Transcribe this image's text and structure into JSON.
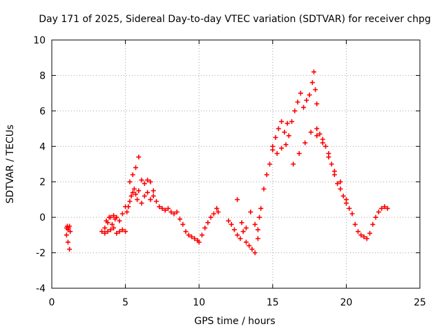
{
  "chart_data": {
    "type": "scatter",
    "title": "Day 171 of 2025, Sidereal Day-to-day VTEC variation (SDTVAR) for receiver chpg",
    "xlabel": "GPS time / hours",
    "ylabel": "SDTVAR / TECUs",
    "xlim": [
      0,
      25
    ],
    "ylim": [
      -4,
      10
    ],
    "xticks": [
      0,
      5,
      10,
      15,
      20,
      25
    ],
    "yticks": [
      -4,
      -2,
      0,
      2,
      4,
      6,
      8,
      10
    ],
    "grid": true,
    "marker": "+",
    "series": [
      {
        "name": "SDTVAR",
        "color": "#ff0000",
        "x": [
          1.0,
          1.05,
          1.1,
          1.15,
          1.2,
          1.25,
          1.0,
          1.1,
          1.2,
          3.4,
          3.6,
          3.8,
          4.0,
          4.2,
          4.4,
          4.6,
          4.8,
          5.0,
          3.6,
          3.8,
          4.0,
          4.2,
          4.4,
          4.6,
          4.8,
          5.0,
          3.7,
          3.9,
          4.1,
          4.3,
          5.1,
          5.2,
          5.3,
          5.4,
          5.5,
          5.6,
          5.7,
          5.8,
          5.9,
          5.3,
          5.5,
          5.7,
          5.9,
          6.1,
          6.3,
          6.5,
          6.7,
          6.9,
          6.1,
          6.3,
          6.5,
          6.7,
          6.9,
          7.1,
          7.3,
          7.5,
          7.7,
          7.9,
          8.1,
          8.3,
          8.5,
          8.7,
          8.9,
          9.1,
          9.3,
          9.5,
          9.7,
          9.9,
          10.0,
          10.2,
          10.4,
          10.6,
          10.8,
          11.0,
          11.2,
          11.3,
          12.0,
          12.2,
          12.4,
          12.6,
          12.8,
          13.0,
          13.2,
          13.4,
          13.6,
          13.8,
          14.0,
          12.6,
          12.9,
          13.2,
          13.5,
          13.8,
          14.1,
          14.0,
          14.2,
          14.4,
          14.6,
          14.8,
          15.0,
          15.2,
          15.4,
          15.6,
          15.8,
          16.0,
          15.0,
          15.3,
          15.6,
          15.9,
          16.1,
          16.3,
          16.5,
          16.7,
          16.9,
          17.1,
          17.3,
          17.5,
          17.7,
          17.8,
          17.9,
          18.0,
          16.4,
          16.8,
          17.2,
          17.6,
          18.0,
          18.2,
          18.4,
          18.6,
          18.8,
          19.0,
          19.2,
          19.4,
          19.6,
          19.8,
          20.0,
          18.0,
          18.4,
          18.8,
          19.2,
          19.6,
          20.0,
          20.2,
          20.4,
          20.6,
          20.8,
          21.0,
          21.2,
          21.4,
          21.6,
          21.8,
          22.0,
          22.2,
          22.4,
          22.6,
          22.8
        ],
        "y": [
          -0.6,
          -0.5,
          -0.7,
          -0.6,
          -0.5,
          -0.8,
          -1.0,
          -1.4,
          -1.8,
          -0.8,
          -0.6,
          -0.3,
          0.0,
          0.1,
          0.0,
          -0.2,
          0.2,
          0.6,
          -0.9,
          -0.8,
          -0.7,
          -0.6,
          -0.9,
          -0.8,
          -0.7,
          -0.8,
          -0.2,
          0.0,
          -0.4,
          -0.1,
          0.3,
          0.6,
          0.9,
          1.2,
          1.4,
          1.6,
          1.3,
          1.0,
          1.5,
          2.0,
          2.4,
          2.8,
          3.4,
          2.1,
          1.9,
          2.1,
          2.0,
          1.5,
          0.8,
          1.2,
          1.4,
          1.0,
          1.2,
          0.9,
          0.6,
          0.5,
          0.4,
          0.5,
          0.3,
          0.2,
          0.3,
          -0.1,
          -0.4,
          -0.8,
          -1.0,
          -1.1,
          -1.2,
          -1.3,
          -1.4,
          -1.0,
          -0.6,
          -0.3,
          0.0,
          0.2,
          0.5,
          0.3,
          -0.2,
          -0.4,
          -0.7,
          -1.0,
          -1.2,
          -0.8,
          -1.4,
          -1.6,
          -1.8,
          -2.0,
          -1.2,
          1.0,
          -0.3,
          -0.6,
          0.3,
          -0.4,
          0.0,
          -0.7,
          0.5,
          1.6,
          2.4,
          3.0,
          3.8,
          4.5,
          5.0,
          5.4,
          4.8,
          5.3,
          4.0,
          3.6,
          3.9,
          4.1,
          4.6,
          5.4,
          6.0,
          6.5,
          7.0,
          6.2,
          6.6,
          6.9,
          7.6,
          8.2,
          7.2,
          6.4,
          3.0,
          3.6,
          4.2,
          4.8,
          5.0,
          4.7,
          4.4,
          4.0,
          3.6,
          3.0,
          2.4,
          1.9,
          1.6,
          1.2,
          0.8,
          4.6,
          4.2,
          3.4,
          2.6,
          2.0,
          1.0,
          0.5,
          0.2,
          -0.4,
          -0.8,
          -1.0,
          -1.1,
          -1.2,
          -0.9,
          -0.4,
          0.0,
          0.3,
          0.5,
          0.6,
          0.5
        ]
      }
    ]
  }
}
